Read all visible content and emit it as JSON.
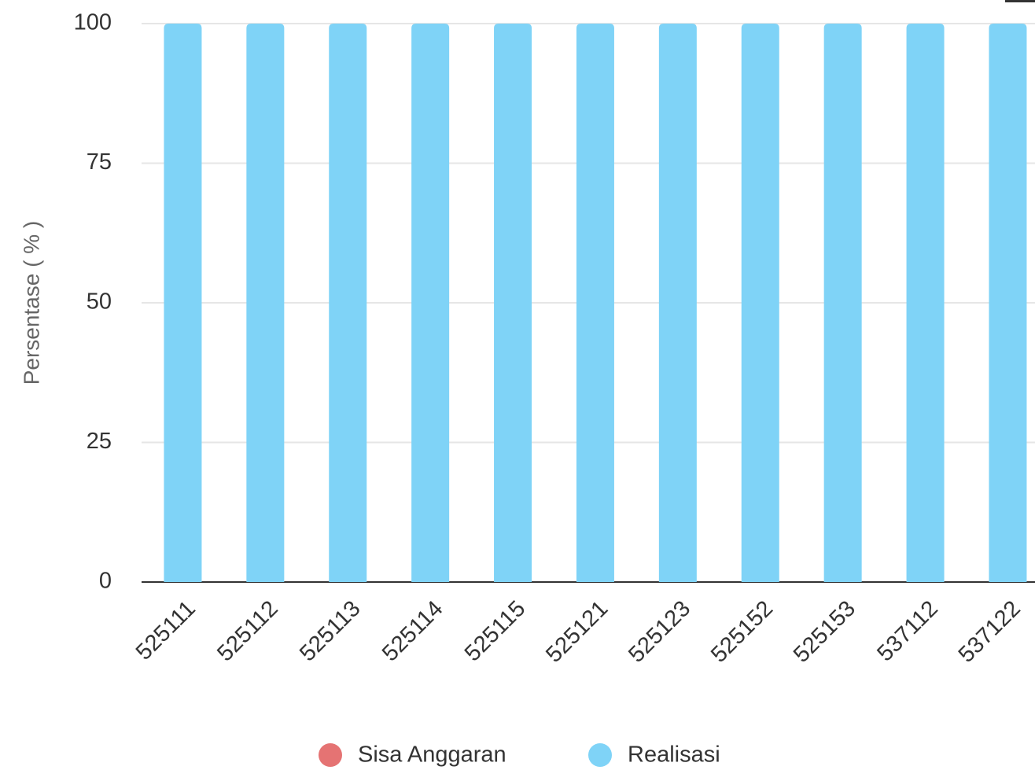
{
  "chart_data": {
    "type": "stacked_bar",
    "y_label": "Persentase ( % )",
    "categories": [
      "525111",
      "525112",
      "525113",
      "525114",
      "525115",
      "525121",
      "525123",
      "525152",
      "525153",
      "537112",
      "537122"
    ],
    "series": [
      {
        "name": "Sisa Anggaran",
        "color": "#e57373",
        "values": [
          0,
          0,
          0,
          0,
          0,
          0,
          0,
          0,
          0,
          0,
          0
        ]
      },
      {
        "name": "Realisasi",
        "color": "#7fd3f7",
        "values": [
          100,
          100,
          100,
          100,
          100,
          100,
          100,
          100,
          100,
          100,
          100
        ]
      }
    ],
    "ylim": [
      0,
      100
    ],
    "yticks": [
      0,
      25,
      50,
      75,
      100
    ],
    "grid": true,
    "legend": "bottom"
  }
}
